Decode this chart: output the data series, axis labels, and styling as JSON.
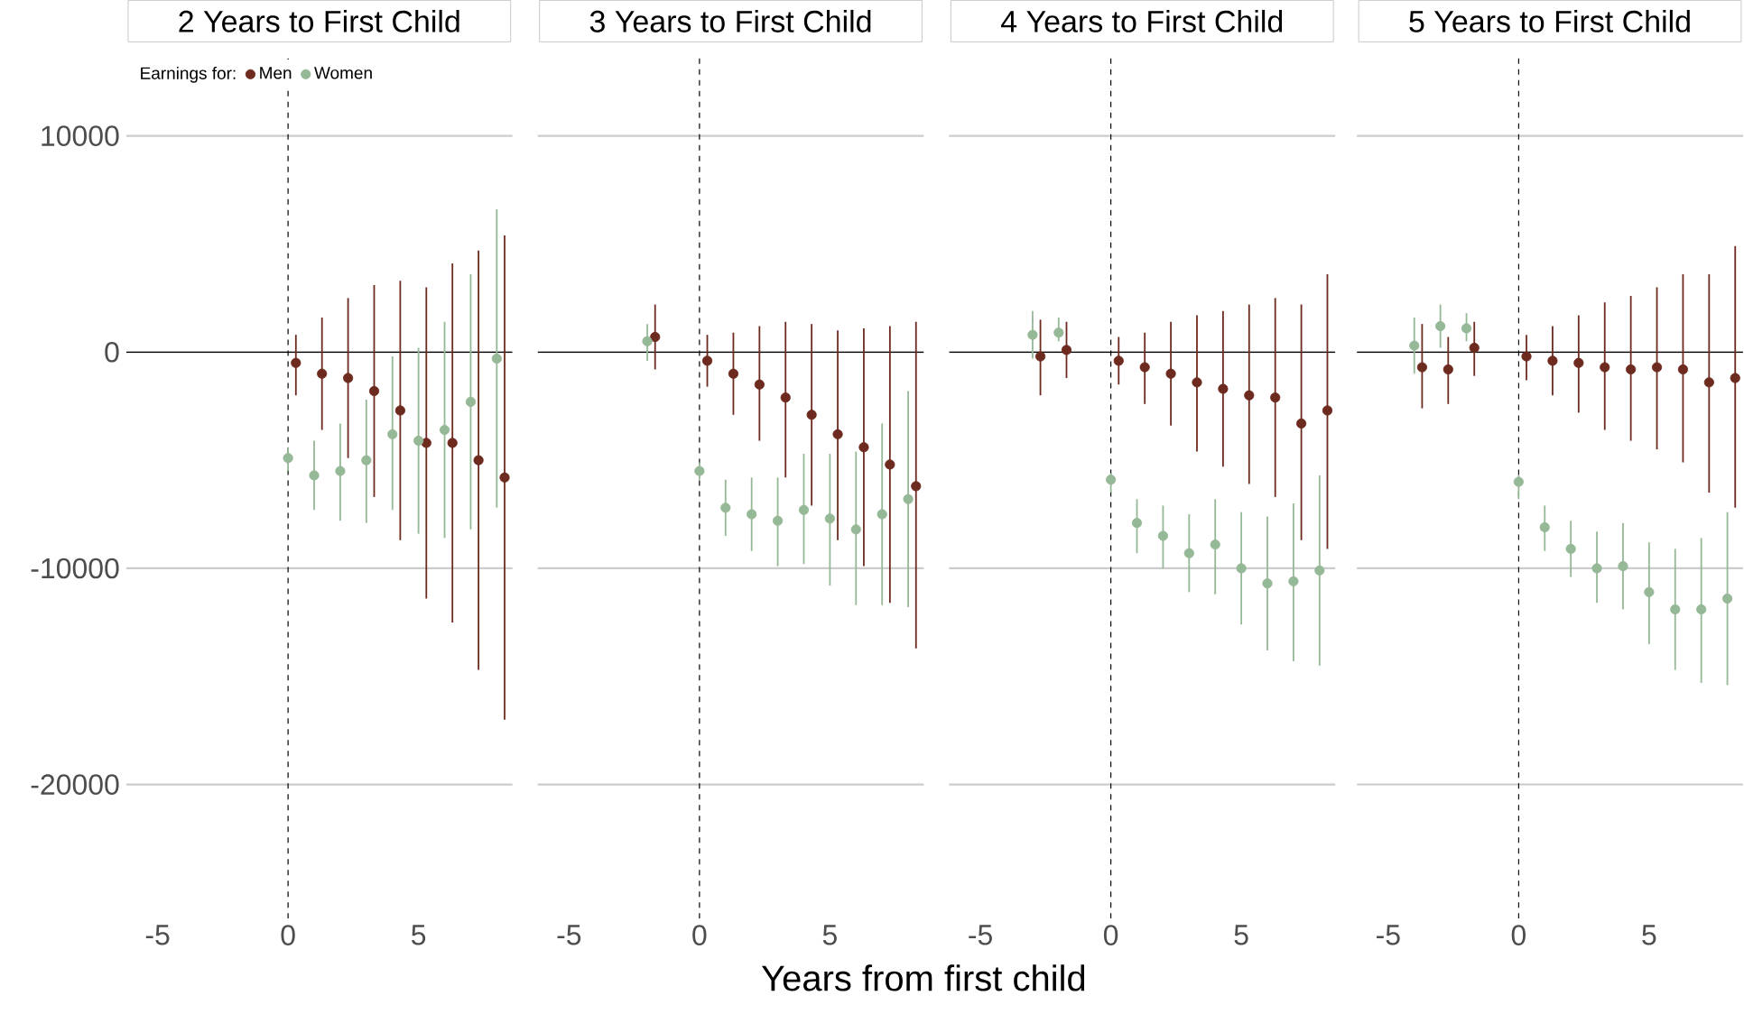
{
  "chart_data": [
    {
      "type": "scatter",
      "title": "2 Years to First Child",
      "legend_title": "Earnings for:",
      "legend": "top left",
      "marker": "circle",
      "grid": "y",
      "xlim": [
        -6.2,
        8.6
      ],
      "ylim": [
        -26200,
        13750
      ],
      "xticks": [
        -5,
        0,
        5
      ],
      "yticks": [
        10000,
        0,
        -10000,
        -20000
      ],
      "ref_lines": [
        {
          "axis": "y",
          "value": 0,
          "color": "#000000"
        },
        {
          "axis": "x",
          "value": 0,
          "color": "#000000",
          "line_style": "dashed"
        }
      ],
      "series": [
        {
          "name": "Men",
          "color": "#6d2a1e",
          "x": [
            0.3,
            1.3,
            2.3,
            3.3,
            4.3,
            5.3,
            6.3,
            7.3,
            8.3
          ],
          "values": [
            -500,
            -1000,
            -1200,
            -1800,
            -2700,
            -4200,
            -4200,
            -5000,
            -5800
          ],
          "errors": [
            [
              -2000,
              800
            ],
            [
              -3600,
              1600
            ],
            [
              -4900,
              2500
            ],
            [
              -6700,
              3100
            ],
            [
              -8700,
              3300
            ],
            [
              -11400,
              3000
            ],
            [
              -12500,
              4100
            ],
            [
              -14700,
              4700
            ],
            [
              -17000,
              5400
            ]
          ]
        },
        {
          "name": "Women",
          "color": "#95b896",
          "x": [
            0,
            1,
            2,
            3,
            4,
            5,
            6,
            7,
            8
          ],
          "values": [
            -4900,
            -5700,
            -5500,
            -5000,
            -3800,
            -4100,
            -3600,
            -2300,
            -300
          ],
          "errors": [
            [
              -5500,
              -4400
            ],
            [
              -7300,
              -4100
            ],
            [
              -7800,
              -3300
            ],
            [
              -7900,
              -2200
            ],
            [
              -7300,
              -200
            ],
            [
              -8400,
              200
            ],
            [
              -8600,
              1400
            ],
            [
              -8200,
              3600
            ],
            [
              -7200,
              6600
            ]
          ]
        }
      ]
    },
    {
      "type": "scatter",
      "title": "3 Years to First Child",
      "xlabel": "Years from first child",
      "marker": "circle",
      "grid": "y",
      "tick_labels": "x",
      "xlim": [
        -6.2,
        8.6
      ],
      "ylim": [
        -26200,
        13750
      ],
      "xticks": [
        -5,
        0,
        5
      ],
      "yticks": [
        10000,
        0,
        -10000,
        -20000
      ],
      "ref_lines": [
        {
          "axis": "y",
          "value": 0,
          "color": "#000000"
        },
        {
          "axis": "x",
          "value": 0,
          "color": "#000000",
          "line_style": "dashed"
        }
      ],
      "series": [
        {
          "color": "#6d2a1e",
          "x": [
            -1.7,
            0.3,
            1.3,
            2.3,
            3.3,
            4.3,
            5.3,
            6.3,
            7.3,
            8.3
          ],
          "values": [
            700,
            -400,
            -1000,
            -1500,
            -2100,
            -2900,
            -3800,
            -4400,
            -5200,
            -6200
          ],
          "errors": [
            [
              -800,
              2200
            ],
            [
              -1600,
              800
            ],
            [
              -2900,
              900
            ],
            [
              -4100,
              1200
            ],
            [
              -5800,
              1400
            ],
            [
              -7100,
              1300
            ],
            [
              -8700,
              1000
            ],
            [
              -9900,
              1100
            ],
            [
              -11600,
              1200
            ],
            [
              -13700,
              1400
            ]
          ]
        },
        {
          "color": "#95b896",
          "x": [
            -2,
            0,
            1,
            2,
            3,
            4,
            5,
            6,
            7,
            8
          ],
          "values": [
            500,
            -5500,
            -7200,
            -7500,
            -7800,
            -7300,
            -7700,
            -8200,
            -7500,
            -6800
          ],
          "errors": [
            [
              -400,
              1300
            ],
            [
              -5900,
              -5100
            ],
            [
              -8500,
              -5900
            ],
            [
              -9200,
              -5800
            ],
            [
              -9900,
              -5800
            ],
            [
              -9800,
              -4700
            ],
            [
              -10800,
              -4700
            ],
            [
              -11700,
              -4600
            ],
            [
              -11700,
              -3300
            ],
            [
              -11800,
              -1800
            ]
          ]
        }
      ]
    },
    {
      "type": "scatter",
      "title": "4 Years to First Child",
      "marker": "circle",
      "grid": "y",
      "tick_labels": "x",
      "xlim": [
        -6.2,
        8.6
      ],
      "ylim": [
        -26200,
        13750
      ],
      "xticks": [
        -5,
        0,
        5
      ],
      "yticks": [
        10000,
        0,
        -10000,
        -20000
      ],
      "ref_lines": [
        {
          "axis": "y",
          "value": 0,
          "color": "#000000"
        },
        {
          "axis": "x",
          "value": 0,
          "color": "#000000",
          "line_style": "dashed"
        }
      ],
      "series": [
        {
          "color": "#6d2a1e",
          "x": [
            -2.7,
            -1.7,
            0.3,
            1.3,
            2.3,
            3.3,
            4.3,
            5.3,
            6.3,
            7.3,
            8.3
          ],
          "values": [
            -200,
            100,
            -400,
            -700,
            -1000,
            -1400,
            -1700,
            -2000,
            -2100,
            -3300,
            -2700
          ],
          "errors": [
            [
              -2000,
              1500
            ],
            [
              -1200,
              1400
            ],
            [
              -1500,
              700
            ],
            [
              -2400,
              900
            ],
            [
              -3400,
              1400
            ],
            [
              -4600,
              1700
            ],
            [
              -5300,
              1900
            ],
            [
              -6100,
              2200
            ],
            [
              -6700,
              2500
            ],
            [
              -8700,
              2200
            ],
            [
              -9100,
              3600
            ]
          ]
        },
        {
          "color": "#95b896",
          "x": [
            -3,
            -2,
            0,
            1,
            2,
            3,
            4,
            5,
            6,
            7,
            8
          ],
          "values": [
            800,
            900,
            -5900,
            -7900,
            -8500,
            -9300,
            -8900,
            -10000,
            -10700,
            -10600,
            -10100
          ],
          "errors": [
            [
              -300,
              1900
            ],
            [
              500,
              1600
            ],
            [
              -6500,
              -5600
            ],
            [
              -9300,
              -6800
            ],
            [
              -10000,
              -7100
            ],
            [
              -11100,
              -7500
            ],
            [
              -11200,
              -6800
            ],
            [
              -12600,
              -7400
            ],
            [
              -13800,
              -7600
            ],
            [
              -14300,
              -7000
            ],
            [
              -14500,
              -5700
            ]
          ]
        }
      ]
    },
    {
      "type": "scatter",
      "title": "5 Years to First Child",
      "marker": "circle",
      "grid": "y",
      "tick_labels": "x",
      "xlim": [
        -6.2,
        8.6
      ],
      "ylim": [
        -26200,
        13750
      ],
      "xticks": [
        -5,
        0,
        5
      ],
      "yticks": [
        10000,
        0,
        -10000,
        -20000
      ],
      "ref_lines": [
        {
          "axis": "y",
          "value": 0,
          "color": "#000000"
        },
        {
          "axis": "x",
          "value": 0,
          "color": "#000000",
          "line_style": "dashed"
        }
      ],
      "series": [
        {
          "color": "#6d2a1e",
          "x": [
            -3.7,
            -2.7,
            -1.7,
            0.3,
            1.3,
            2.3,
            3.3,
            4.3,
            5.3,
            6.3,
            7.3,
            8.3
          ],
          "values": [
            -700,
            -800,
            200,
            -200,
            -400,
            -500,
            -700,
            -800,
            -700,
            -800,
            -1400,
            -1200
          ],
          "errors": [
            [
              -2600,
              1300
            ],
            [
              -2400,
              700
            ],
            [
              -1100,
              1400
            ],
            [
              -1300,
              800
            ],
            [
              -2000,
              1200
            ],
            [
              -2800,
              1700
            ],
            [
              -3600,
              2300
            ],
            [
              -4100,
              2600
            ],
            [
              -4500,
              3000
            ],
            [
              -5100,
              3600
            ],
            [
              -6500,
              3600
            ],
            [
              -7200,
              4900
            ]
          ]
        },
        {
          "color": "#95b896",
          "x": [
            -4,
            -3,
            -2,
            0,
            1,
            2,
            3,
            4,
            5,
            6,
            7,
            8
          ],
          "values": [
            300,
            1200,
            1100,
            -6000,
            -8100,
            -9100,
            -10000,
            -9900,
            -11100,
            -11900,
            -11900,
            -11400
          ],
          "errors": [
            [
              -1000,
              1600
            ],
            [
              200,
              2200
            ],
            [
              500,
              1800
            ],
            [
              -6800,
              -5700
            ],
            [
              -9200,
              -7100
            ],
            [
              -10400,
              -7800
            ],
            [
              -11600,
              -8300
            ],
            [
              -11900,
              -7900
            ],
            [
              -13500,
              -8800
            ],
            [
              -14700,
              -9100
            ],
            [
              -15300,
              -8600
            ],
            [
              -15400,
              -7400
            ]
          ]
        }
      ]
    }
  ]
}
